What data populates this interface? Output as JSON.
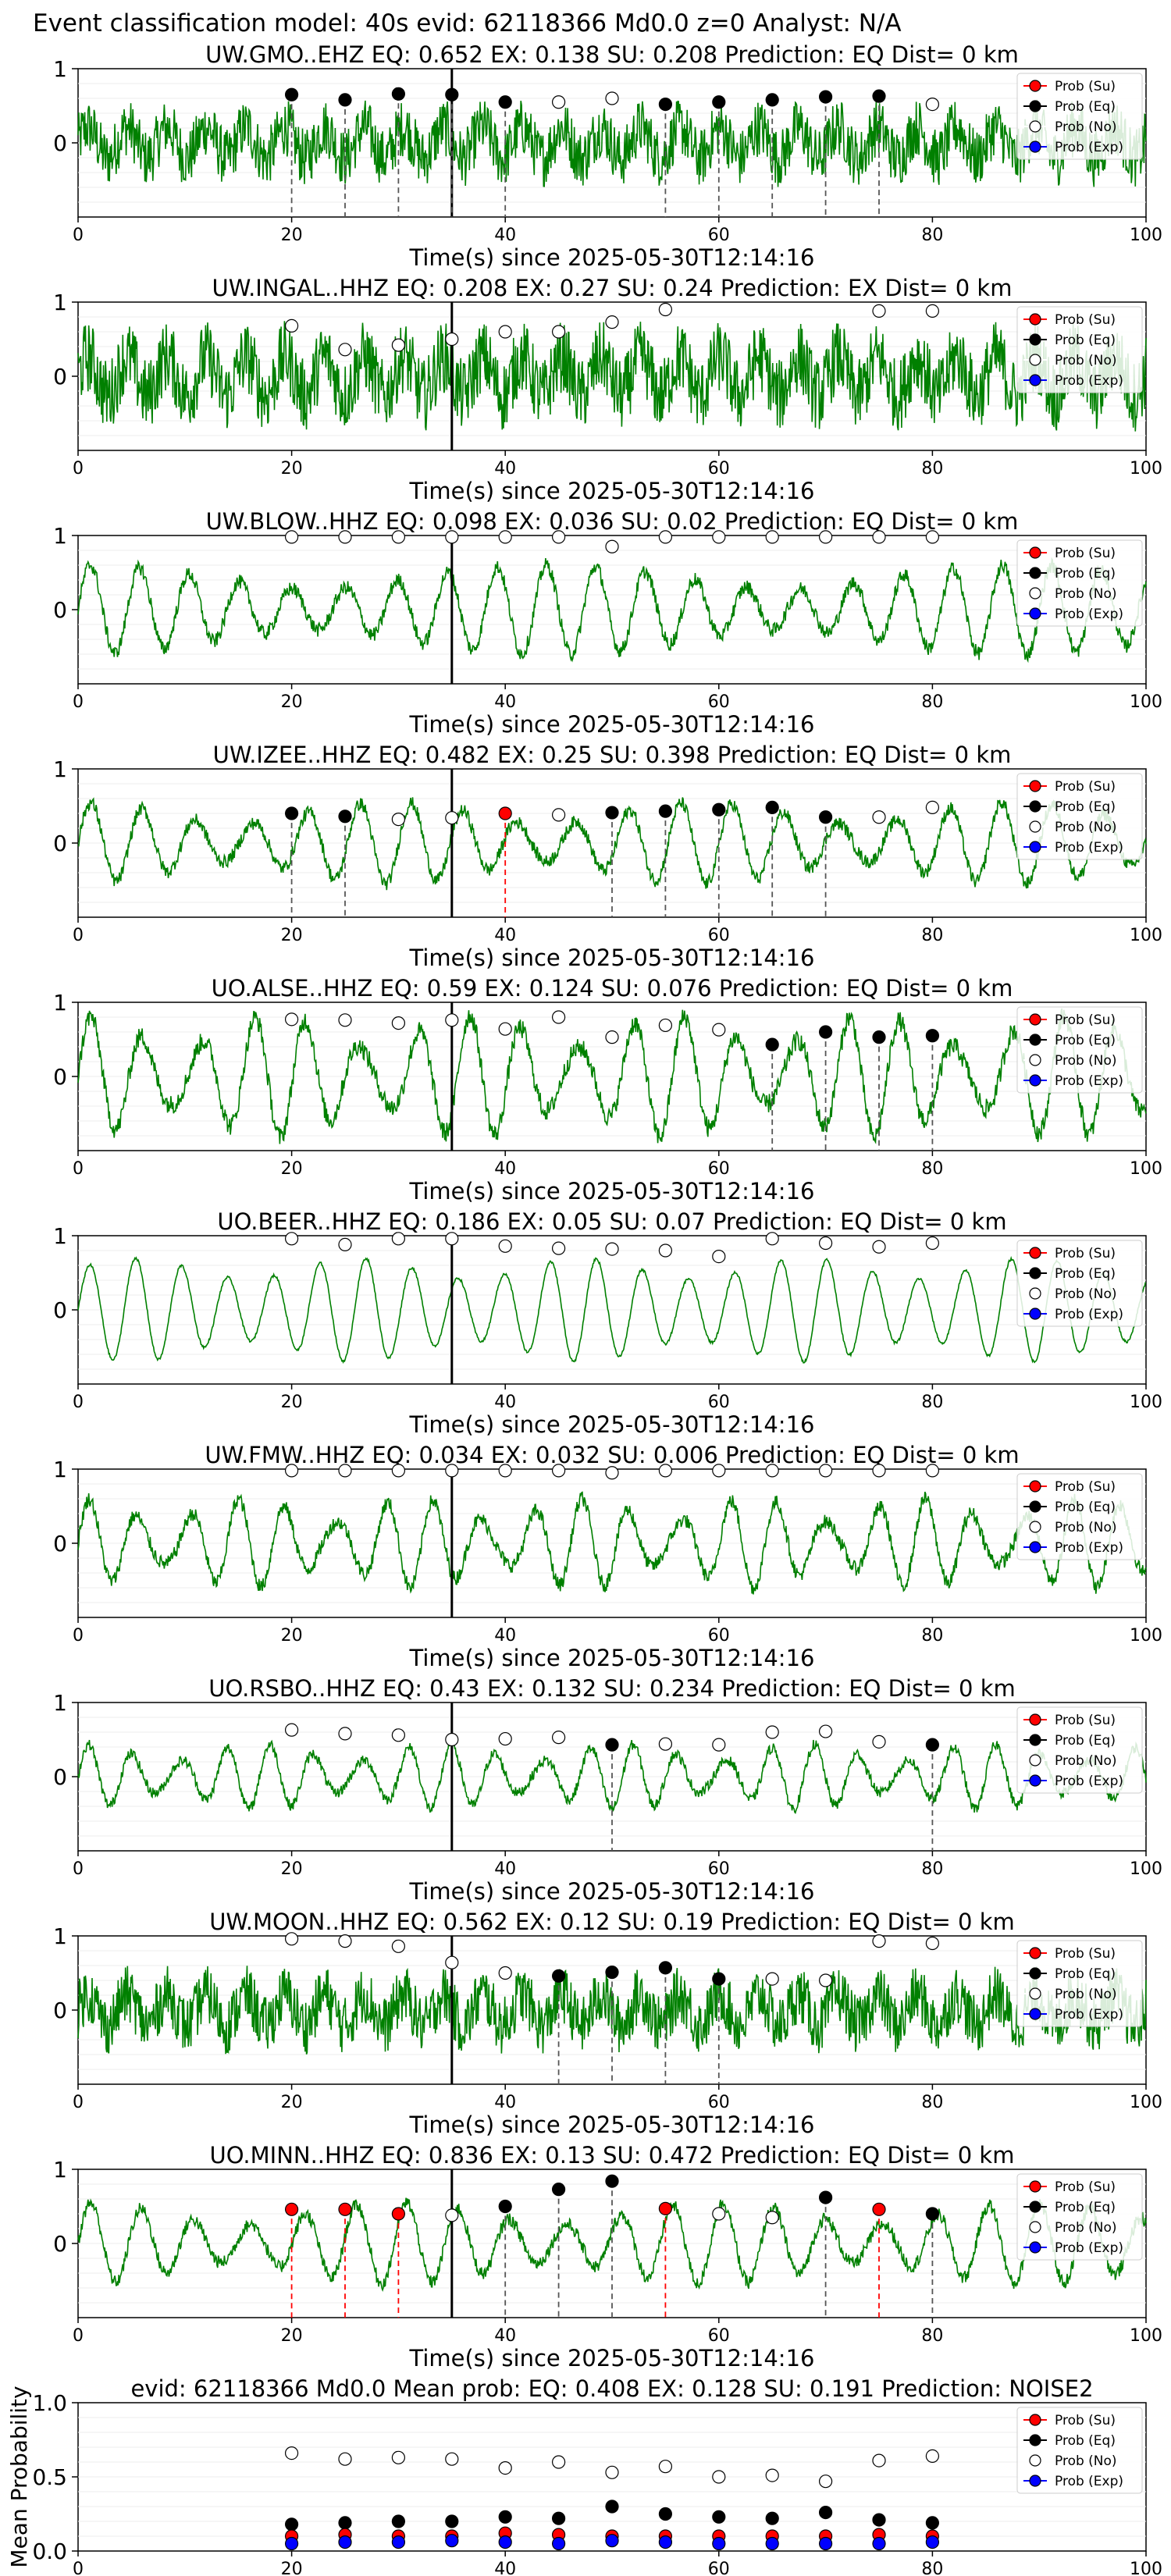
{
  "figure": {
    "suptitle": "Event classification model: 40s evid: 62118366 Md0.0 z=0 Analyst: N/A",
    "xlabel": "Time(s) since 2025-05-30T12:14:16",
    "legend_labels": [
      "Prob (Su)",
      "Prob (Eq)",
      "Prob (No)",
      "Prob (Exp)"
    ],
    "colors": {
      "waveform": "#008000",
      "su": "#ff0000",
      "eq": "#000000",
      "no": "#ffffff",
      "exp": "#0000ff",
      "arrival": "#000000"
    }
  },
  "chart_data": [
    {
      "type": "line",
      "station": "UW.GMO..EHZ",
      "title": "UW.GMO..EHZ   EQ: 0.652  EX: 0.138  SU: 0.208   Prediction: EQ    Dist= 0 km",
      "xlim": [
        0,
        100
      ],
      "ylim": [
        -1,
        1
      ],
      "xticks": [
        0,
        20,
        40,
        60,
        80,
        100
      ],
      "yticks": [
        0,
        1
      ],
      "arrival_time": 35,
      "style": "noisy",
      "amplitude": 0.6,
      "markers": [
        {
          "t": 20,
          "cls": "eq",
          "p": 0.65
        },
        {
          "t": 25,
          "cls": "eq",
          "p": 0.58
        },
        {
          "t": 30,
          "cls": "eq",
          "p": 0.66
        },
        {
          "t": 35,
          "cls": "eq",
          "p": 0.65
        },
        {
          "t": 40,
          "cls": "eq",
          "p": 0.55
        },
        {
          "t": 45,
          "cls": "no",
          "p": 0.55
        },
        {
          "t": 50,
          "cls": "no",
          "p": 0.6
        },
        {
          "t": 55,
          "cls": "eq",
          "p": 0.52
        },
        {
          "t": 60,
          "cls": "eq",
          "p": 0.55
        },
        {
          "t": 65,
          "cls": "eq",
          "p": 0.58
        },
        {
          "t": 70,
          "cls": "eq",
          "p": 0.62
        },
        {
          "t": 75,
          "cls": "eq",
          "p": 0.63
        },
        {
          "t": 80,
          "cls": "no",
          "p": 0.52
        }
      ]
    },
    {
      "type": "line",
      "station": "UW.INGAL..HHZ",
      "title": "UW.INGAL..HHZ   EQ: 0.208  EX: 0.27  SU: 0.24   Prediction: EX    Dist= 0 km",
      "xlim": [
        0,
        100
      ],
      "ylim": [
        -1,
        1
      ],
      "xticks": [
        0,
        20,
        40,
        60,
        80,
        100
      ],
      "yticks": [
        0,
        1
      ],
      "arrival_time": 35,
      "style": "noisy",
      "amplitude": 0.75,
      "markers": [
        {
          "t": 20,
          "cls": "no",
          "p": 0.68
        },
        {
          "t": 25,
          "cls": "no",
          "p": 0.36
        },
        {
          "t": 30,
          "cls": "no",
          "p": 0.42
        },
        {
          "t": 35,
          "cls": "no",
          "p": 0.5
        },
        {
          "t": 40,
          "cls": "no",
          "p": 0.6
        },
        {
          "t": 45,
          "cls": "no",
          "p": 0.6
        },
        {
          "t": 50,
          "cls": "no",
          "p": 0.73
        },
        {
          "t": 55,
          "cls": "no",
          "p": 0.9
        },
        {
          "t": 75,
          "cls": "no",
          "p": 0.88
        },
        {
          "t": 80,
          "cls": "no",
          "p": 0.88
        }
      ]
    },
    {
      "type": "line",
      "station": "UW.BLOW..HHZ",
      "title": "UW.BLOW..HHZ   EQ: 0.098  EX: 0.036  SU: 0.02   Prediction: EQ    Dist= 0 km",
      "xlim": [
        0,
        100
      ],
      "ylim": [
        -1,
        1
      ],
      "xticks": [
        0,
        20,
        40,
        60,
        80,
        100
      ],
      "yticks": [
        0,
        1
      ],
      "arrival_time": 35,
      "style": "wave",
      "amplitude": 0.55,
      "markers": [
        {
          "t": 20,
          "cls": "no",
          "p": 0.98
        },
        {
          "t": 25,
          "cls": "no",
          "p": 0.98
        },
        {
          "t": 30,
          "cls": "no",
          "p": 0.98
        },
        {
          "t": 35,
          "cls": "no",
          "p": 0.98
        },
        {
          "t": 40,
          "cls": "no",
          "p": 0.98
        },
        {
          "t": 45,
          "cls": "no",
          "p": 0.98
        },
        {
          "t": 50,
          "cls": "no",
          "p": 0.85
        },
        {
          "t": 55,
          "cls": "no",
          "p": 0.98
        },
        {
          "t": 60,
          "cls": "no",
          "p": 0.98
        },
        {
          "t": 65,
          "cls": "no",
          "p": 0.98
        },
        {
          "t": 70,
          "cls": "no",
          "p": 0.98
        },
        {
          "t": 75,
          "cls": "no",
          "p": 0.98
        },
        {
          "t": 80,
          "cls": "no",
          "p": 0.98
        }
      ]
    },
    {
      "type": "line",
      "station": "UW.IZEE..HHZ",
      "title": "UW.IZEE..HHZ   EQ: 0.482  EX: 0.25  SU: 0.398   Prediction: EQ    Dist= 0 km",
      "xlim": [
        0,
        100
      ],
      "ylim": [
        -1,
        1
      ],
      "xticks": [
        0,
        20,
        40,
        60,
        80,
        100
      ],
      "yticks": [
        0,
        1
      ],
      "arrival_time": 35,
      "style": "wave",
      "amplitude": 0.5,
      "markers": [
        {
          "t": 20,
          "cls": "eq",
          "p": 0.4
        },
        {
          "t": 25,
          "cls": "eq",
          "p": 0.36
        },
        {
          "t": 30,
          "cls": "no",
          "p": 0.32
        },
        {
          "t": 35,
          "cls": "no",
          "p": 0.34
        },
        {
          "t": 40,
          "cls": "su",
          "p": 0.4
        },
        {
          "t": 45,
          "cls": "no",
          "p": 0.38
        },
        {
          "t": 50,
          "cls": "eq",
          "p": 0.41
        },
        {
          "t": 55,
          "cls": "eq",
          "p": 0.43
        },
        {
          "t": 60,
          "cls": "eq",
          "p": 0.45
        },
        {
          "t": 65,
          "cls": "eq",
          "p": 0.48
        },
        {
          "t": 70,
          "cls": "eq",
          "p": 0.35
        },
        {
          "t": 75,
          "cls": "no",
          "p": 0.35
        },
        {
          "t": 80,
          "cls": "no",
          "p": 0.48
        }
      ]
    },
    {
      "type": "line",
      "station": "UO.ALSE..HHZ",
      "title": "UO.ALSE..HHZ   EQ: 0.59  EX: 0.124  SU: 0.076   Prediction: EQ    Dist= 0 km",
      "xlim": [
        0,
        100
      ],
      "ylim": [
        -1,
        1
      ],
      "xticks": [
        0,
        20,
        40,
        60,
        80,
        100
      ],
      "yticks": [
        0,
        1
      ],
      "arrival_time": 35,
      "style": "wave",
      "amplitude": 0.75,
      "markers": [
        {
          "t": 20,
          "cls": "no",
          "p": 0.77
        },
        {
          "t": 25,
          "cls": "no",
          "p": 0.76
        },
        {
          "t": 30,
          "cls": "no",
          "p": 0.72
        },
        {
          "t": 35,
          "cls": "no",
          "p": 0.76
        },
        {
          "t": 40,
          "cls": "no",
          "p": 0.64
        },
        {
          "t": 45,
          "cls": "no",
          "p": 0.8
        },
        {
          "t": 50,
          "cls": "no",
          "p": 0.53
        },
        {
          "t": 55,
          "cls": "no",
          "p": 0.69
        },
        {
          "t": 60,
          "cls": "no",
          "p": 0.63
        },
        {
          "t": 65,
          "cls": "eq",
          "p": 0.43
        },
        {
          "t": 70,
          "cls": "eq",
          "p": 0.6
        },
        {
          "t": 75,
          "cls": "eq",
          "p": 0.53
        },
        {
          "t": 80,
          "cls": "eq",
          "p": 0.55
        }
      ]
    },
    {
      "type": "line",
      "station": "UO.BEER..HHZ",
      "title": "UO.BEER..HHZ   EQ: 0.186  EX: 0.05  SU: 0.07   Prediction: EQ    Dist= 0 km",
      "xlim": [
        0,
        100
      ],
      "ylim": [
        -1,
        1
      ],
      "xticks": [
        0,
        20,
        40,
        60,
        80,
        100
      ],
      "yticks": [
        0,
        1
      ],
      "arrival_time": 35,
      "style": "smooth",
      "amplitude": 0.7,
      "markers": [
        {
          "t": 20,
          "cls": "no",
          "p": 0.96
        },
        {
          "t": 25,
          "cls": "no",
          "p": 0.88
        },
        {
          "t": 30,
          "cls": "no",
          "p": 0.96
        },
        {
          "t": 35,
          "cls": "no",
          "p": 0.96
        },
        {
          "t": 40,
          "cls": "no",
          "p": 0.86
        },
        {
          "t": 45,
          "cls": "no",
          "p": 0.83
        },
        {
          "t": 50,
          "cls": "no",
          "p": 0.82
        },
        {
          "t": 55,
          "cls": "no",
          "p": 0.8
        },
        {
          "t": 60,
          "cls": "no",
          "p": 0.72
        },
        {
          "t": 65,
          "cls": "no",
          "p": 0.96
        },
        {
          "t": 70,
          "cls": "no",
          "p": 0.9
        },
        {
          "t": 75,
          "cls": "no",
          "p": 0.85
        },
        {
          "t": 80,
          "cls": "no",
          "p": 0.9
        }
      ]
    },
    {
      "type": "line",
      "station": "UW.FMW..HHZ",
      "title": "UW.FMW..HHZ   EQ: 0.034  EX: 0.032  SU: 0.006   Prediction: EQ    Dist= 0 km",
      "xlim": [
        0,
        100
      ],
      "ylim": [
        -1,
        1
      ],
      "xticks": [
        0,
        20,
        40,
        60,
        80,
        100
      ],
      "yticks": [
        0,
        1
      ],
      "arrival_time": 35,
      "style": "wave",
      "amplitude": 0.55,
      "markers": [
        {
          "t": 20,
          "cls": "no",
          "p": 0.98
        },
        {
          "t": 25,
          "cls": "no",
          "p": 0.98
        },
        {
          "t": 30,
          "cls": "no",
          "p": 0.98
        },
        {
          "t": 35,
          "cls": "no",
          "p": 0.98
        },
        {
          "t": 40,
          "cls": "no",
          "p": 0.98
        },
        {
          "t": 45,
          "cls": "no",
          "p": 0.98
        },
        {
          "t": 50,
          "cls": "no",
          "p": 0.95
        },
        {
          "t": 55,
          "cls": "no",
          "p": 0.98
        },
        {
          "t": 60,
          "cls": "no",
          "p": 0.98
        },
        {
          "t": 65,
          "cls": "no",
          "p": 0.98
        },
        {
          "t": 70,
          "cls": "no",
          "p": 0.98
        },
        {
          "t": 75,
          "cls": "no",
          "p": 0.98
        },
        {
          "t": 80,
          "cls": "no",
          "p": 0.98
        }
      ]
    },
    {
      "type": "line",
      "station": "UO.RSBO..HHZ",
      "title": "UO.RSBO..HHZ   EQ: 0.43  EX: 0.132  SU: 0.234   Prediction: EQ    Dist= 0 km",
      "xlim": [
        0,
        100
      ],
      "ylim": [
        -1,
        1
      ],
      "xticks": [
        0,
        20,
        40,
        60,
        80,
        100
      ],
      "yticks": [
        0,
        1
      ],
      "arrival_time": 35,
      "style": "wave",
      "amplitude": 0.4,
      "markers": [
        {
          "t": 20,
          "cls": "no",
          "p": 0.63
        },
        {
          "t": 25,
          "cls": "no",
          "p": 0.58
        },
        {
          "t": 30,
          "cls": "no",
          "p": 0.56
        },
        {
          "t": 35,
          "cls": "no",
          "p": 0.5
        },
        {
          "t": 40,
          "cls": "no",
          "p": 0.51
        },
        {
          "t": 45,
          "cls": "no",
          "p": 0.53
        },
        {
          "t": 50,
          "cls": "eq",
          "p": 0.43
        },
        {
          "t": 55,
          "cls": "no",
          "p": 0.44
        },
        {
          "t": 60,
          "cls": "no",
          "p": 0.43
        },
        {
          "t": 65,
          "cls": "no",
          "p": 0.6
        },
        {
          "t": 70,
          "cls": "no",
          "p": 0.61
        },
        {
          "t": 75,
          "cls": "no",
          "p": 0.47
        },
        {
          "t": 80,
          "cls": "eq",
          "p": 0.43
        }
      ]
    },
    {
      "type": "line",
      "station": "UW.MOON..HHZ",
      "title": "UW.MOON..HHZ   EQ: 0.562  EX: 0.12  SU: 0.19   Prediction: EQ    Dist= 0 km",
      "xlim": [
        0,
        100
      ],
      "ylim": [
        -1,
        1
      ],
      "xticks": [
        0,
        20,
        40,
        60,
        80,
        100
      ],
      "yticks": [
        0,
        1
      ],
      "arrival_time": 35,
      "style": "noisy",
      "amplitude": 0.6,
      "markers": [
        {
          "t": 20,
          "cls": "no",
          "p": 0.96
        },
        {
          "t": 25,
          "cls": "no",
          "p": 0.93
        },
        {
          "t": 30,
          "cls": "no",
          "p": 0.86
        },
        {
          "t": 35,
          "cls": "no",
          "p": 0.64
        },
        {
          "t": 40,
          "cls": "no",
          "p": 0.5
        },
        {
          "t": 45,
          "cls": "eq",
          "p": 0.46
        },
        {
          "t": 50,
          "cls": "eq",
          "p": 0.51
        },
        {
          "t": 55,
          "cls": "eq",
          "p": 0.57
        },
        {
          "t": 60,
          "cls": "eq",
          "p": 0.42
        },
        {
          "t": 65,
          "cls": "no",
          "p": 0.42
        },
        {
          "t": 70,
          "cls": "no",
          "p": 0.4
        },
        {
          "t": 75,
          "cls": "no",
          "p": 0.93
        },
        {
          "t": 80,
          "cls": "no",
          "p": 0.9
        }
      ]
    },
    {
      "type": "line",
      "station": "UO.MINN..HHZ",
      "title": "UO.MINN..HHZ   EQ: 0.836  EX: 0.13  SU: 0.472   Prediction: EQ    Dist= 0 km",
      "xlim": [
        0,
        100
      ],
      "ylim": [
        -1,
        1
      ],
      "xticks": [
        0,
        20,
        40,
        60,
        80,
        100
      ],
      "yticks": [
        0,
        1
      ],
      "arrival_time": 35,
      "style": "wave",
      "amplitude": 0.5,
      "markers": [
        {
          "t": 20,
          "cls": "su",
          "p": 0.46
        },
        {
          "t": 25,
          "cls": "su",
          "p": 0.46
        },
        {
          "t": 30,
          "cls": "su",
          "p": 0.4
        },
        {
          "t": 35,
          "cls": "no",
          "p": 0.38
        },
        {
          "t": 40,
          "cls": "eq",
          "p": 0.5
        },
        {
          "t": 45,
          "cls": "eq",
          "p": 0.73
        },
        {
          "t": 50,
          "cls": "eq",
          "p": 0.84
        },
        {
          "t": 55,
          "cls": "su",
          "p": 0.47
        },
        {
          "t": 60,
          "cls": "no",
          "p": 0.4
        },
        {
          "t": 65,
          "cls": "no",
          "p": 0.35
        },
        {
          "t": 70,
          "cls": "eq",
          "p": 0.62
        },
        {
          "t": 75,
          "cls": "su",
          "p": 0.46
        },
        {
          "t": 80,
          "cls": "eq",
          "p": 0.4
        }
      ]
    },
    {
      "type": "scatter",
      "station": "mean",
      "title": "evid: 62118366  Md0.0   Mean prob:   EQ: 0.408  EX: 0.128  SU: 0.191   Prediction: NOISE2",
      "ylabel": "Mean Probability",
      "xlim": [
        0,
        100
      ],
      "ylim": [
        0,
        1
      ],
      "xticks": [
        0,
        20,
        40,
        60,
        80,
        100
      ],
      "yticks": [
        0.0,
        0.5,
        1.0
      ],
      "x": [
        20,
        25,
        30,
        35,
        40,
        45,
        50,
        55,
        60,
        65,
        70,
        75,
        80
      ],
      "series": [
        {
          "name": "Prob (No)",
          "cls": "no",
          "values": [
            0.66,
            0.62,
            0.63,
            0.62,
            0.56,
            0.6,
            0.53,
            0.57,
            0.5,
            0.51,
            0.47,
            0.61,
            0.64
          ]
        },
        {
          "name": "Prob (Eq)",
          "cls": "eq",
          "values": [
            0.18,
            0.19,
            0.2,
            0.2,
            0.23,
            0.22,
            0.3,
            0.25,
            0.23,
            0.22,
            0.26,
            0.21,
            0.19
          ]
        },
        {
          "name": "Prob (Su)",
          "cls": "su",
          "values": [
            0.1,
            0.11,
            0.1,
            0.1,
            0.12,
            0.11,
            0.1,
            0.1,
            0.1,
            0.1,
            0.1,
            0.11,
            0.1
          ]
        },
        {
          "name": "Prob (Exp)",
          "cls": "exp",
          "values": [
            0.05,
            0.06,
            0.06,
            0.07,
            0.06,
            0.05,
            0.07,
            0.06,
            0.05,
            0.05,
            0.05,
            0.05,
            0.06
          ]
        }
      ]
    }
  ]
}
